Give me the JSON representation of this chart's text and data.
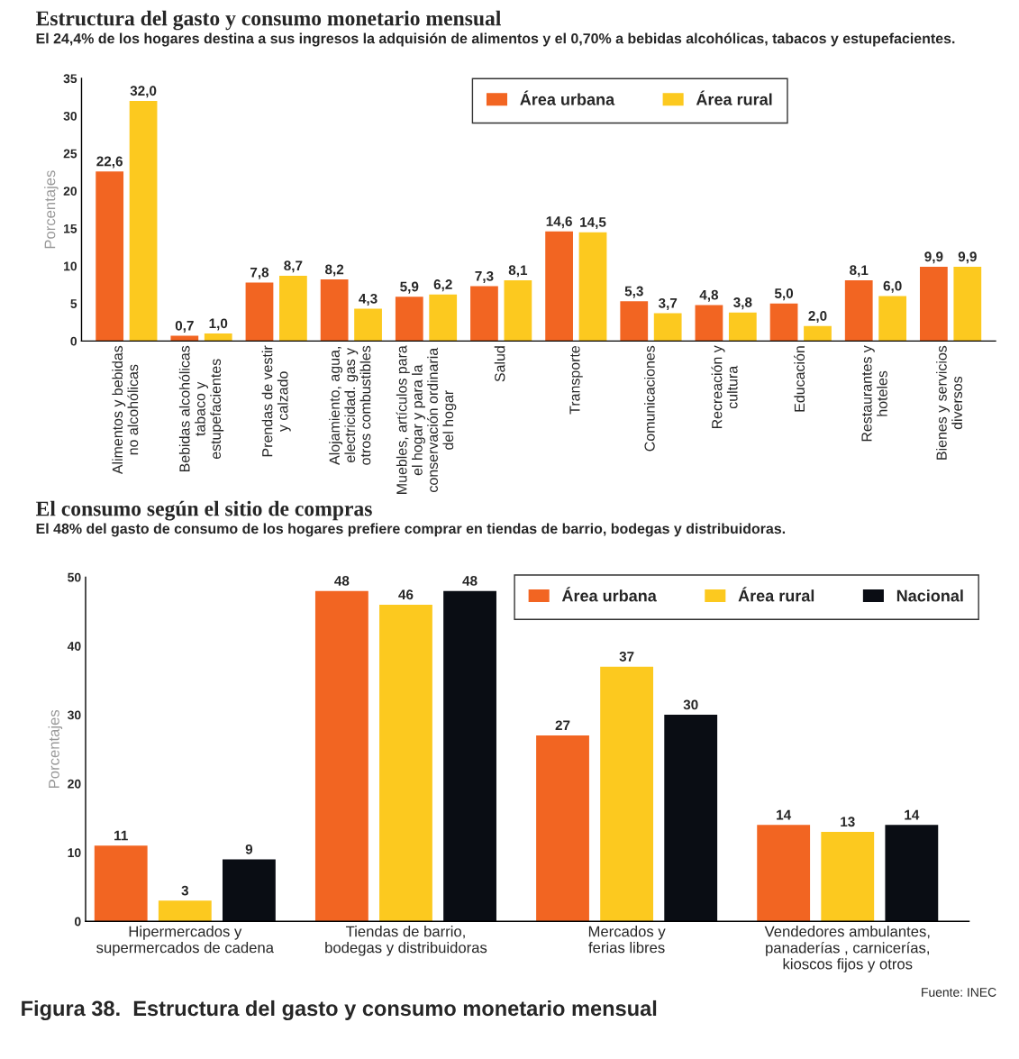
{
  "chart_data": [
    {
      "type": "bar",
      "title": "Estructura del gasto y consumo monetario mensual",
      "subtitle": "El 24,4% de los hogares destina a sus ingresos la adquisión de alimentos y el 0,70% a bebidas alcohólicas, tabacos y estupefacientes.",
      "ylabel": "Porcentajes",
      "categories": [
        "Alimentos y bebidas\nno alcohólicas",
        "Bebidas alcohólicas\ntabaco y\nestupefacientes",
        "Prendas de vestir\ny calzado",
        "Alojamiento, agua,\nelectricidad. gas y\notros combustibles",
        "Muebles, artículos para\nel hogar y para la\nconservación ordinaria\ndel hogar",
        "Salud",
        "Transporte",
        "Comunicaciones",
        "Recreación y\ncultura",
        "Educación",
        "Restaurantes y\nhoteles",
        "Bienes y servicios\ndiversos"
      ],
      "series": [
        {
          "name": "Área urbana",
          "color": "#f26522",
          "values": [
            22.6,
            0.7,
            7.8,
            8.2,
            5.9,
            7.3,
            14.6,
            5.3,
            4.8,
            5.0,
            8.1,
            9.9
          ],
          "value_labels": [
            "22,6",
            "0,7",
            "7,8",
            "8,2",
            "5,9",
            "7,3",
            "14,6",
            "5,3",
            "4,8",
            "5,0",
            "8,1",
            "9,9"
          ]
        },
        {
          "name": "Área rural",
          "color": "#fcc91f",
          "values": [
            32.0,
            1.0,
            8.7,
            4.3,
            6.2,
            8.1,
            14.5,
            3.7,
            3.8,
            2.0,
            6.0,
            9.9
          ],
          "value_labels": [
            "32,0",
            "1,0",
            "8,7",
            "4,3",
            "6,2",
            "8,1",
            "14,5",
            "3,7",
            "3,8",
            "2,0",
            "6,0",
            "9,9"
          ]
        }
      ],
      "ylim": [
        0,
        35
      ],
      "yticks": [
        0,
        5,
        10,
        15,
        20,
        25,
        30,
        35
      ],
      "grid": false,
      "legend": "top"
    },
    {
      "type": "bar",
      "title": "El consumo según el sitio de compras",
      "subtitle": "El 48% del gasto de consumo de los hogares prefiere comprar en tiendas de barrio, bodegas y distribuidoras.",
      "ylabel": "Porcentajes",
      "categories": [
        "Hipermercados y\nsupermercados de cadena",
        "Tiendas de barrio,\nbodegas y distribuidoras",
        "Mercados y\nferias libres",
        "Vendedores ambulantes,\npanaderías , carnicerías,\nkioscos fijos y otros"
      ],
      "series": [
        {
          "name": "Área urbana",
          "color": "#f26522",
          "values": [
            11,
            48,
            27,
            14
          ]
        },
        {
          "name": "Área rural",
          "color": "#fcc91f",
          "values": [
            3,
            46,
            37,
            13
          ]
        },
        {
          "name": "Nacional",
          "color": "#0a0d14",
          "values": [
            9,
            48,
            30,
            14
          ]
        }
      ],
      "data_labels": true,
      "ylim": [
        0,
        50
      ],
      "yticks": [
        0,
        10,
        20,
        30,
        40,
        50
      ],
      "grid": false,
      "legend": "top right",
      "annotations": [
        "Fuente: INEC",
        "Figura 38.  Estructura del gasto y consumo monetario mensual"
      ]
    }
  ]
}
